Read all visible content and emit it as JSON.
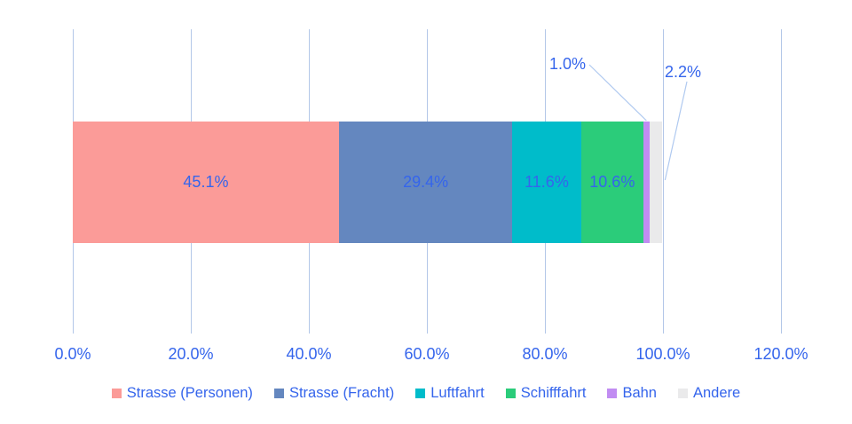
{
  "chart_data": {
    "type": "bar",
    "stacked": true,
    "orientation": "horizontal",
    "title": "",
    "xlabel": "",
    "ylabel": "",
    "xlim": [
      0,
      120
    ],
    "x_tick_step": 20,
    "x_ticks": [
      "0.0%",
      "20.0%",
      "40.0%",
      "60.0%",
      "80.0%",
      "100.0%",
      "120.0%"
    ],
    "grid": "vertical",
    "legend_position": "bottom",
    "series": [
      {
        "name": "Strasse (Personen)",
        "value": 45.1,
        "label": "45.1%",
        "color": "#fb9b98",
        "label_inside": true
      },
      {
        "name": "Strasse (Fracht)",
        "value": 29.4,
        "label": "29.4%",
        "color": "#6487bf",
        "label_inside": true
      },
      {
        "name": "Luftfahrt",
        "value": 11.6,
        "label": "11.6%",
        "color": "#00bcca",
        "label_inside": true
      },
      {
        "name": "Schifffahrt",
        "value": 10.6,
        "label": "10.6%",
        "color": "#2bcc7a",
        "label_inside": true
      },
      {
        "name": "Bahn",
        "value": 1.0,
        "label": "1.0%",
        "color": "#c18cf2",
        "label_inside": false
      },
      {
        "name": "Andere",
        "value": 2.2,
        "label": "2.2%",
        "color": "#eaeaeb",
        "label_inside": false
      }
    ],
    "colors": {
      "label_text": "#3565ec",
      "gridline": "#b3c7e8",
      "leader_line": "#afc9f0",
      "background": "#ffffff"
    }
  }
}
